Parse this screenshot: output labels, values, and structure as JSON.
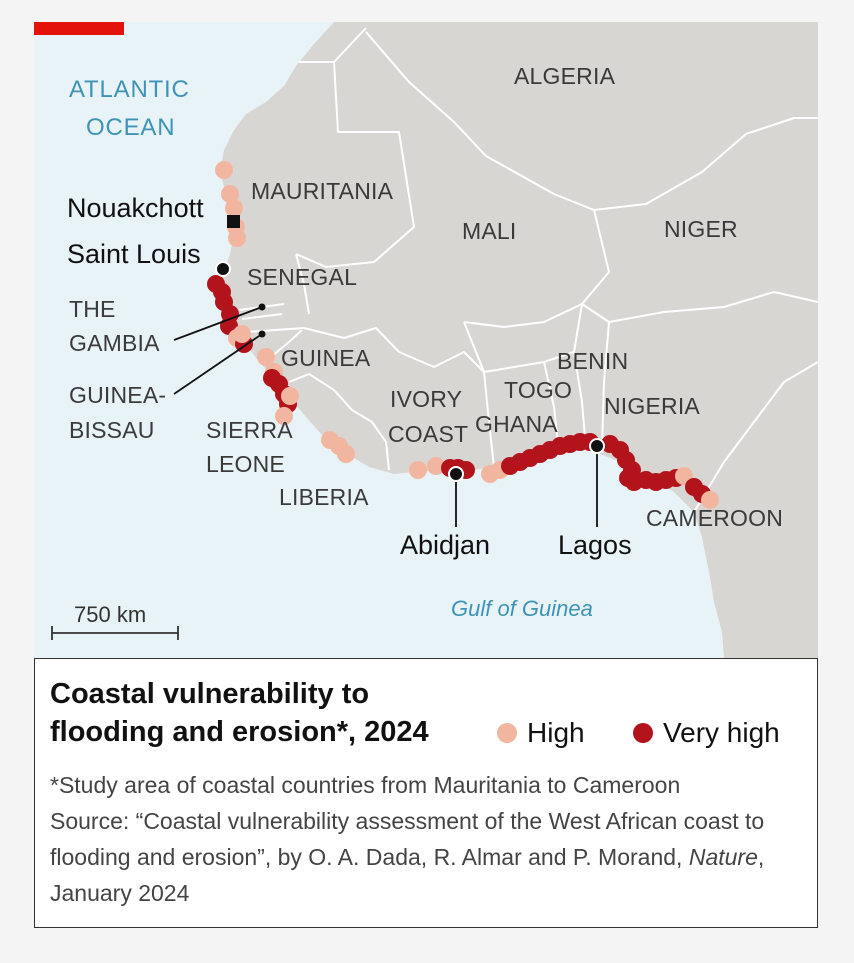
{
  "colors": {
    "ocean": "#e8f3f8",
    "land": "#d7d6d2",
    "border": "#ffffff",
    "high": "#f2b6a0",
    "very_high": "#b3131b",
    "accent": "#e3120b"
  },
  "map": {
    "ocean_label_line1": "ATLANTIC",
    "ocean_label_line2": "OCEAN",
    "gulf_label": "Gulf of Guinea",
    "countries": {
      "algeria": "ALGERIA",
      "mauritania": "MAURITANIA",
      "mali": "MALI",
      "niger": "NIGER",
      "senegal": "SENEGAL",
      "gambia_1": "THE",
      "gambia_2": "GAMBIA",
      "guinea_bissau_1": "GUINEA-",
      "guinea_bissau_2": "BISSAU",
      "guinea": "GUINEA",
      "sierra_leone_1": "SIERRA",
      "sierra_leone_2": "LEONE",
      "liberia": "LIBERIA",
      "ivory_coast_1": "IVORY",
      "ivory_coast_2": "COAST",
      "ghana": "GHANA",
      "togo": "TOGO",
      "benin": "BENIN",
      "nigeria": "NIGERIA",
      "cameroon": "CAMEROON"
    },
    "cities": {
      "nouakchott": "Nouakchott",
      "saint_louis": "Saint Louis",
      "abidjan": "Abidjan",
      "lagos": "Lagos"
    },
    "scale_label": "750 km"
  },
  "legend": {
    "title": "Coastal vulnerability to flooding and erosion*, 2024",
    "high_label": "High",
    "very_high_label": "Very high"
  },
  "notes": {
    "footnote": "*Study area of coastal countries from Mauritania to Cameroon",
    "source_prefix": "Source: “Coastal vulnerability assessment of the West African coast to flooding and erosion”, by O. A. Dada, R. Almar and P. Morand,",
    "source_journal": "Nature",
    "source_suffix": ", January 2024"
  }
}
